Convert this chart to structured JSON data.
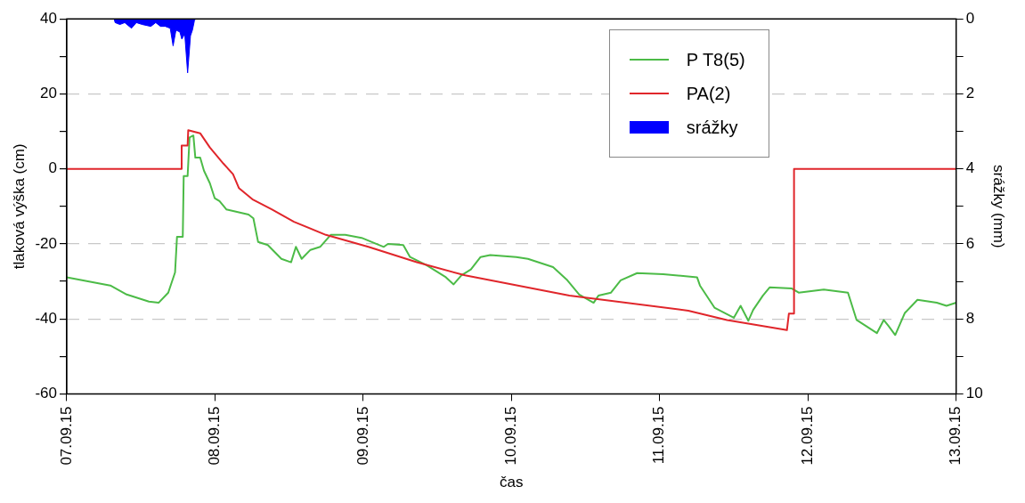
{
  "chart_data": {
    "type": "line",
    "xlabel": "čas",
    "ylabel": "tlaková výška (cm)",
    "y2label": "srážky (mm)",
    "xlim": [
      "--09-07",
      "--09-13"
    ],
    "xticks": [
      {
        "value": "--09-07",
        "label": "07.09.15"
      },
      {
        "value": "--09-08",
        "label": "08.09.15"
      },
      {
        "value": "--09-09",
        "label": "09.09.15"
      },
      {
        "value": "--09-10",
        "label": "10.09.15"
      },
      {
        "value": "--09-11",
        "label": "11.09.15"
      },
      {
        "value": "--09-12",
        "label": "12.09.15"
      },
      {
        "value": "--09-13",
        "label": "13.09.15"
      }
    ],
    "ylim": [
      -60,
      40
    ],
    "yticks": [
      -60,
      {
        "value": -50,
        "label": null
      },
      -40,
      {
        "value": -30,
        "label": null
      },
      -20,
      {
        "value": -10,
        "label": null
      },
      0,
      {
        "value": 10,
        "label": null
      },
      20,
      {
        "value": 30,
        "label": null
      },
      40
    ],
    "y2lim": [
      10,
      0
    ],
    "y2ticks": [
      0,
      {
        "value": 1,
        "label": null
      },
      2,
      {
        "value": 3,
        "label": null
      },
      4,
      {
        "value": 5,
        "label": null
      },
      6,
      {
        "value": 7,
        "label": null
      },
      8,
      {
        "value": 9,
        "label": null
      },
      10
    ],
    "grid": "y",
    "legend": "top right",
    "marker": "none",
    "line_style": "solid",
    "series": [
      {
        "name": "P T8(5)",
        "color": "#4cbb47",
        "x": [
          "--09-07T00:00",
          "--09-07T07:03",
          "--09-07T09:42",
          "--09-07T13:18",
          "--09-07T14:52",
          "--09-07T16:26",
          "--09-07T17:32",
          "--09-07T17:51",
          "--09-07T18:47",
          "--09-07T18:56",
          "--09-07T19:34",
          "--09-07T19:53",
          "--09-07T20:30",
          "--09-07T20:49",
          "--09-07T21:36",
          "--09-07T22:13",
          "--09-07T23:10",
          "--09-07T23:57",
          "--09-08T00:44",
          "--09-08T01:50",
          "--09-08T05:26",
          "--09-08T06:13",
          "--09-08T06:59",
          "--09-08T08:33",
          "--09-08T10:45",
          "--09-08T12:19",
          "--09-08T13:06",
          "--09-08T14:02",
          "--09-08T15:27",
          "--09-08T17:01",
          "--09-08T18:44",
          "--09-08T21:05",
          "--09-08T23:44",
          "--09-09T03:20",
          "--09-09T04:00",
          "--09-09T06:29",
          "--09-09T07:35",
          "--09-09T10:15",
          "--09-09T13:23",
          "--09-09T14:38",
          "--09-09T15:53",
          "--09-09T17:26",
          "--09-09T19:00",
          "--09-09T20:34",
          "--09-10T00:47",
          "--09-10T02:40",
          "--09-10T06:44",
          "--09-10T08:56",
          "--09-10T10:58",
          "--09-10T13:18",
          "--09-10T14:05",
          "--09-10T16:07",
          "--09-10T17:41",
          "--09-10T20:21",
          "--09-11T00:34",
          "--09-11T06:03",
          "--09-11T06:31",
          "--09-11T08:52",
          "--09-11T12:00",
          "--09-11T13:06",
          "--09-11T14:21",
          "--09-11T15:08",
          "--09-11T16:42",
          "--09-11T17:48",
          "--09-11T21:24",
          "--09-11T22:30",
          "--09-12T02:34",
          "--09-12T06:29",
          "--09-12T07:53",
          "--09-12T11:10",
          "--09-12T12:16",
          "--09-12T13:03",
          "--09-12T14:08",
          "--09-12T15:42",
          "--09-12T17:44",
          "--09-12T20:52",
          "--09-12T22:26",
          "--09-13T00:00"
        ],
        "values": [
          -28.9,
          -31.1,
          -33.5,
          -35.4,
          -35.7,
          -33,
          -27.6,
          -18.1,
          -18.1,
          -1.9,
          -1.9,
          8.4,
          8.9,
          3,
          3,
          -0.5,
          -3.8,
          -7.8,
          -8.6,
          -10.8,
          -12.2,
          -13.2,
          -19.5,
          -20.3,
          -24,
          -24.9,
          -20.8,
          -24,
          -21.6,
          -20.8,
          -17.6,
          -17.6,
          -18.4,
          -20.8,
          -20,
          -20.3,
          -23.5,
          -25.7,
          -28.9,
          -30.8,
          -28.4,
          -26.8,
          -23.5,
          -23,
          -23.5,
          -24,
          -26.2,
          -29.5,
          -33.5,
          -35.7,
          -33.8,
          -33,
          -29.7,
          -27.8,
          -28.1,
          -28.9,
          -31.1,
          -37,
          -39.7,
          -36.5,
          -40.5,
          -37.6,
          -33.8,
          -31.6,
          -31.9,
          -33,
          -32.2,
          -33,
          -40.3,
          -43.8,
          -40.3,
          -41.9,
          -44.3,
          -38.4,
          -34.9,
          -35.7,
          -36.5,
          -35.7
        ]
      },
      {
        "name": "PA(2)",
        "color": "#e0262b",
        "x": [
          "--09-07T00:00",
          "--09-07T18:36",
          "--09-07T18:36",
          "--09-07T19:34",
          "--09-07T19:40",
          "--09-07T21:36",
          "--09-07T23:10",
          "--09-08T01:22",
          "--09-08T02:55",
          "--09-08T03:52",
          "--09-08T06:03",
          "--09-08T09:11",
          "--09-08T12:47",
          "--09-08T17:57",
          "--09-09T00:50",
          "--09-09T08:40",
          "--09-09T16:29",
          "--09-09T22:26",
          "--09-10T09:23",
          "--09-11T04:38",
          "--09-11T10:54",
          "--09-11T20:36",
          "--09-11T20:55",
          "--09-11T21:45",
          "--09-11T21:45",
          "--09-13T00:00"
        ],
        "values": [
          0,
          0,
          6.2,
          6.2,
          10.3,
          9.5,
          5.7,
          1.4,
          -1.4,
          -5.1,
          -8.1,
          -10.8,
          -14.1,
          -17.6,
          -20.8,
          -24.9,
          -28.4,
          -30.3,
          -33.8,
          -37.8,
          -40.3,
          -43,
          -38.6,
          -38.6,
          0,
          0
        ]
      },
      {
        "name": "srážky",
        "type": "area",
        "axis": "y2",
        "color": "#0000ff",
        "x": [
          "--09-07T00:00",
          "--09-07T07:40",
          "--09-07T07:50",
          "--09-07T08:36",
          "--09-07T09:23",
          "--09-07T10:29",
          "--09-07T11:16",
          "--09-07T12:13",
          "--09-07T13:37",
          "--09-07T14:24",
          "--09-07T15:11",
          "--09-07T15:58",
          "--09-07T16:45",
          "--09-07T17:13",
          "--09-07T17:41",
          "--09-07T18:19",
          "--09-07T18:38",
          "--09-07T19:06",
          "--09-07T19:34",
          "--09-07T20:02",
          "--09-07T20:21",
          "--09-07T20:40",
          "--09-07T20:50",
          "--09-13T00:00"
        ],
        "values": [
          0,
          0,
          0.1,
          0.15,
          0.1,
          0.25,
          0.1,
          0.15,
          0.2,
          0.1,
          0.2,
          0.2,
          0.25,
          0.72,
          0.3,
          0.35,
          0.54,
          0.4,
          1.44,
          0.45,
          0.3,
          0.05,
          0,
          0
        ]
      }
    ]
  }
}
